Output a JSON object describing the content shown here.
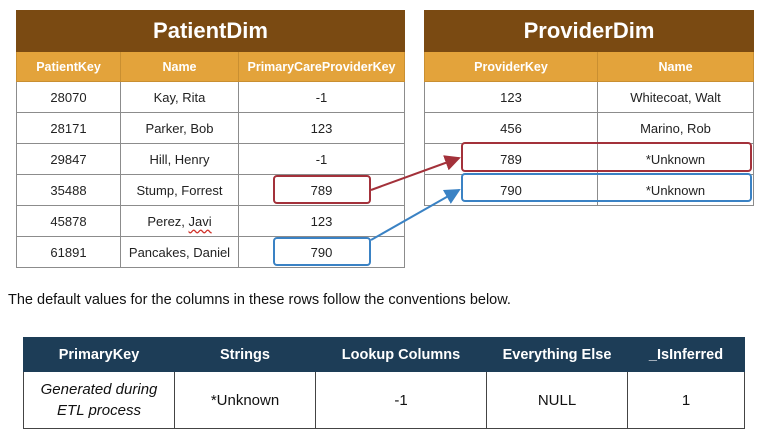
{
  "patient_table": {
    "title": "PatientDim",
    "columns": [
      "PatientKey",
      "Name",
      "PrimaryCareProviderKey"
    ],
    "rows": [
      [
        "28070",
        "Kay, Rita",
        "-1"
      ],
      [
        "28171",
        "Parker, Bob",
        "123"
      ],
      [
        "29847",
        "Hill, Henry",
        "-1"
      ],
      [
        "35488",
        "Stump, Forrest",
        "789"
      ],
      [
        "45878",
        "Perez, Javi",
        "123"
      ],
      [
        "61891",
        "Pancakes, Daniel",
        "790"
      ]
    ]
  },
  "provider_table": {
    "title": "ProviderDim",
    "columns": [
      "ProviderKey",
      "Name"
    ],
    "rows": [
      [
        "123",
        "Whitecoat, Walt"
      ],
      [
        "456",
        "Marino, Rob"
      ],
      [
        "789",
        "*Unknown"
      ],
      [
        "790",
        "*Unknown"
      ]
    ]
  },
  "note": "The default values for the columns in these rows follow the conventions below.",
  "defaults_table": {
    "columns": [
      "PrimaryKey",
      "Strings",
      "Lookup Columns",
      "Everything Else",
      "_IsInferred"
    ],
    "row": [
      "Generated during ETL process",
      "*Unknown",
      "-1",
      "NULL",
      "1"
    ],
    "primary_key_lines": [
      "Generated during",
      "ETL process"
    ]
  },
  "colors": {
    "title_brown": "#7a4a12",
    "header_orange": "#e3a33b",
    "highlight_red": "#a3313a",
    "highlight_blue": "#3a82c4",
    "defaults_header": "#1d3d57"
  }
}
